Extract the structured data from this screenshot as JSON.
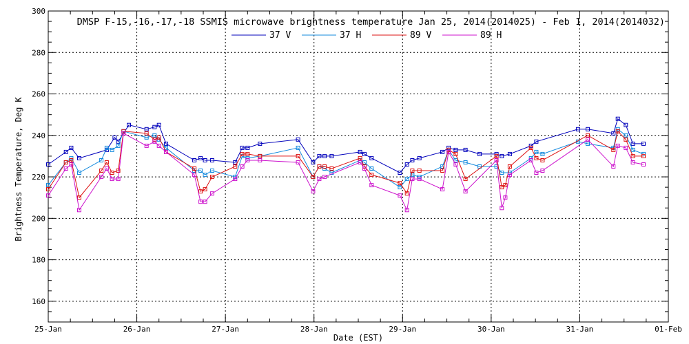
{
  "chart_data": {
    "type": "line",
    "title": "DMSP F-15,-16,-17,-18 SSMIS microwave brightness temperature Jan 25, 2014(2014025) - Feb  1, 2014(2014032)",
    "xlabel": "Date (EST)",
    "ylabel": "Brightness Temperature, Deg K",
    "xlim": [
      0,
      7
    ],
    "ylim": [
      150,
      300
    ],
    "x_tick_labels": [
      "25-Jan",
      "26-Jan",
      "27-Jan",
      "28-Jan",
      "29-Jan",
      "30-Jan",
      "31-Jan",
      "01-Feb"
    ],
    "y_tick_values": [
      160,
      180,
      200,
      220,
      240,
      260,
      280,
      300
    ],
    "grid": true,
    "legend_position": "top",
    "series": [
      {
        "name": "37 V",
        "color": "#0000bb",
        "x": [
          0.0,
          0.2,
          0.26,
          0.35,
          0.66,
          0.75,
          0.79,
          0.91,
          1.11,
          1.2,
          1.25,
          1.33,
          1.65,
          1.72,
          1.77,
          1.85,
          2.11,
          2.19,
          2.25,
          2.39,
          2.82,
          2.99,
          3.06,
          3.12,
          3.2,
          3.52,
          3.57,
          3.65,
          3.97,
          4.05,
          4.11,
          4.19,
          4.45,
          4.52,
          4.6,
          4.71,
          4.87,
          5.06,
          5.12,
          5.21,
          5.45,
          5.51,
          5.98,
          6.09,
          6.38,
          6.43,
          6.52,
          6.6,
          6.72
        ],
        "values": [
          226,
          232,
          234,
          229,
          233,
          239,
          237,
          245,
          243,
          244,
          245,
          236,
          228,
          229,
          228,
          228,
          227,
          234,
          234,
          236,
          238,
          227,
          230,
          230,
          230,
          232,
          231,
          229,
          222,
          226,
          228,
          229,
          232,
          234,
          233,
          233,
          231,
          231,
          230,
          231,
          235,
          237,
          243,
          243,
          241,
          248,
          245,
          236,
          236
        ]
      },
      {
        "name": "37 H",
        "color": "#1188dd",
        "x": [
          0.0,
          0.2,
          0.26,
          0.35,
          0.6,
          0.66,
          0.72,
          0.79,
          0.85,
          1.11,
          1.2,
          1.25,
          1.33,
          1.65,
          1.72,
          1.77,
          1.85,
          2.11,
          2.19,
          2.25,
          2.39,
          2.82,
          2.99,
          3.06,
          3.12,
          3.2,
          3.52,
          3.57,
          3.65,
          3.97,
          4.05,
          4.11,
          4.19,
          4.45,
          4.52,
          4.6,
          4.71,
          4.87,
          5.06,
          5.12,
          5.21,
          5.45,
          5.51,
          5.58,
          5.98,
          6.09,
          6.38,
          6.43,
          6.52,
          6.6,
          6.72
        ],
        "values": [
          216,
          227,
          229,
          222,
          228,
          234,
          233,
          235,
          242,
          239,
          240,
          238,
          234,
          223,
          223,
          221,
          223,
          220,
          230,
          229,
          230,
          234,
          220,
          225,
          224,
          222,
          228,
          227,
          224,
          215,
          219,
          221,
          220,
          225,
          233,
          228,
          227,
          225,
          225,
          222,
          222,
          229,
          232,
          231,
          237,
          236,
          234,
          243,
          240,
          233,
          231
        ]
      },
      {
        "name": "89 V",
        "color": "#dd1111",
        "x": [
          0.0,
          0.2,
          0.26,
          0.35,
          0.6,
          0.66,
          0.72,
          0.79,
          0.85,
          1.11,
          1.2,
          1.25,
          1.33,
          1.65,
          1.72,
          1.77,
          1.85,
          2.11,
          2.19,
          2.25,
          2.39,
          2.82,
          2.99,
          3.06,
          3.12,
          3.2,
          3.52,
          3.57,
          3.65,
          3.97,
          4.05,
          4.11,
          4.19,
          4.45,
          4.52,
          4.6,
          4.71,
          5.06,
          5.12,
          5.16,
          5.21,
          5.45,
          5.51,
          5.58,
          6.09,
          6.38,
          6.43,
          6.52,
          6.6,
          6.72
        ],
        "values": [
          214,
          227,
          228,
          210,
          223,
          227,
          222,
          223,
          242,
          241,
          238,
          239,
          232,
          224,
          213,
          214,
          220,
          225,
          231,
          231,
          230,
          230,
          220,
          225,
          225,
          224,
          229,
          225,
          221,
          217,
          212,
          223,
          223,
          223,
          233,
          231,
          219,
          230,
          215,
          216,
          225,
          234,
          229,
          228,
          240,
          233,
          242,
          238,
          230,
          230
        ]
      },
      {
        "name": "89 H",
        "color": "#cc11cc",
        "x": [
          0.0,
          0.2,
          0.26,
          0.35,
          0.6,
          0.66,
          0.72,
          0.79,
          0.85,
          1.11,
          1.2,
          1.25,
          1.33,
          1.65,
          1.72,
          1.77,
          1.85,
          2.11,
          2.19,
          2.25,
          2.39,
          2.82,
          2.99,
          3.06,
          3.12,
          3.52,
          3.57,
          3.65,
          3.97,
          4.05,
          4.11,
          4.19,
          4.45,
          4.52,
          4.6,
          4.71,
          5.06,
          5.12,
          5.16,
          5.21,
          5.45,
          5.51,
          5.58,
          6.09,
          6.38,
          6.43,
          6.52,
          6.6,
          6.72
        ],
        "values": [
          211,
          224,
          226,
          204,
          220,
          224,
          219,
          219,
          241,
          235,
          237,
          235,
          232,
          221,
          208,
          208,
          212,
          219,
          225,
          228,
          228,
          227,
          213,
          219,
          220,
          227,
          224,
          216,
          211,
          204,
          219,
          219,
          214,
          232,
          226,
          213,
          228,
          205,
          210,
          221,
          228,
          222,
          223,
          238,
          225,
          235,
          234,
          227,
          226
        ]
      }
    ]
  }
}
